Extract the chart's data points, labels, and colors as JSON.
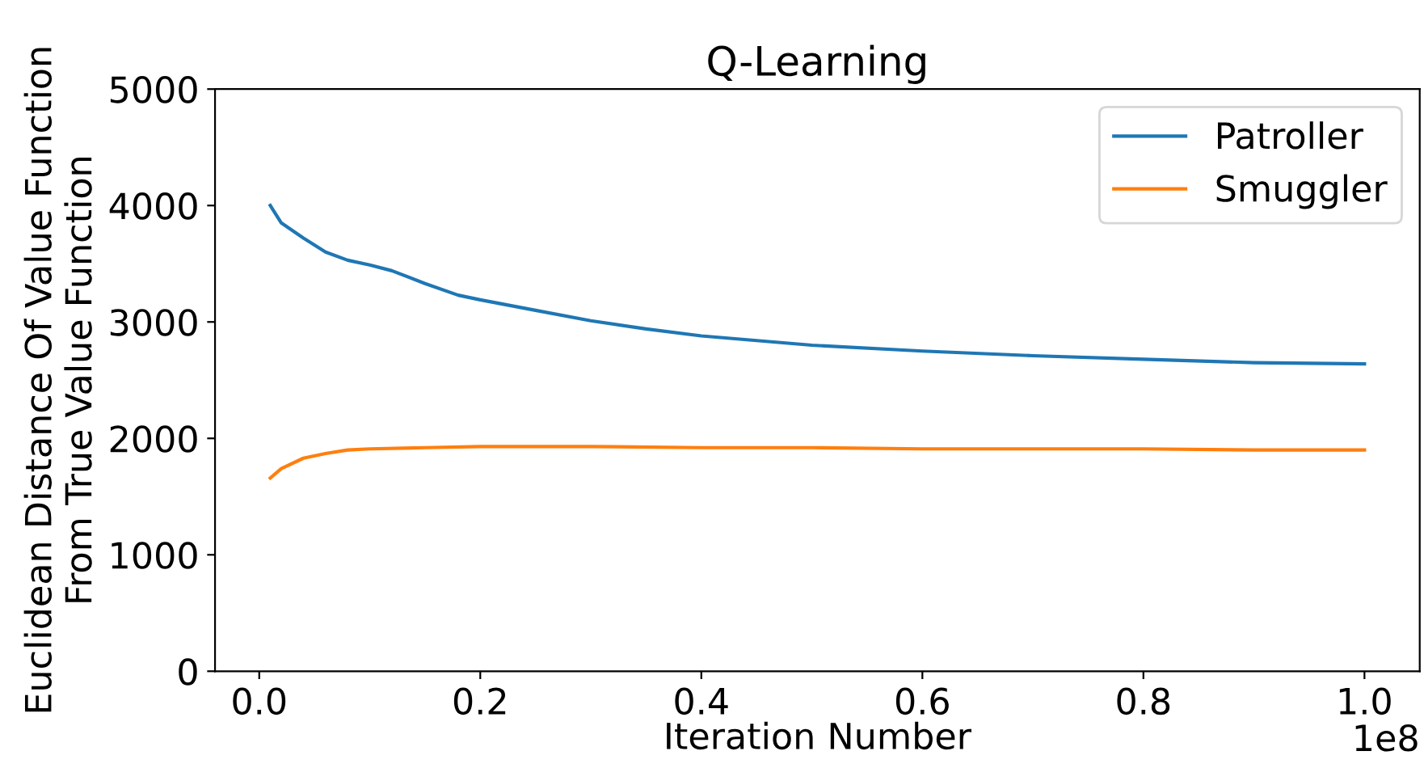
{
  "chart_data": {
    "type": "line",
    "title": "Q-Learning",
    "xlabel": "Iteration Number",
    "ylabel": "Euclidean Distance Of Value Function\nFrom True Value Function",
    "series": [
      {
        "name": "Patroller",
        "color": "#1f77b4",
        "x": [
          0.01,
          0.02,
          0.04,
          0.06,
          0.08,
          0.1,
          0.12,
          0.15,
          0.18,
          0.2,
          0.25,
          0.3,
          0.35,
          0.4,
          0.5,
          0.6,
          0.7,
          0.8,
          0.9,
          1.0
        ],
        "values": [
          4000,
          3850,
          3720,
          3600,
          3530,
          3490,
          3440,
          3330,
          3230,
          3190,
          3100,
          3010,
          2940,
          2880,
          2800,
          2750,
          2710,
          2680,
          2650,
          2640
        ]
      },
      {
        "name": "Smuggler",
        "color": "#ff7f0e",
        "x": [
          0.01,
          0.02,
          0.04,
          0.06,
          0.08,
          0.1,
          0.15,
          0.2,
          0.25,
          0.3,
          0.4,
          0.5,
          0.6,
          0.7,
          0.8,
          0.9,
          1.0
        ],
        "values": [
          1660,
          1740,
          1830,
          1870,
          1900,
          1910,
          1920,
          1930,
          1930,
          1930,
          1920,
          1920,
          1910,
          1910,
          1910,
          1900,
          1900
        ]
      }
    ],
    "xlim": [
      -0.04,
      1.05
    ],
    "xticks": [
      {
        "value": 0,
        "label": "0.0"
      },
      {
        "value": 0.2,
        "label": "0.2"
      },
      {
        "value": 0.4,
        "label": "0.4"
      },
      {
        "value": 0.6,
        "label": "0.6"
      },
      {
        "value": 0.8,
        "label": "0.8"
      },
      {
        "value": 1.0,
        "label": "1.0"
      }
    ],
    "ylim": [
      0,
      5000
    ],
    "yticks": [
      0,
      1000,
      2000,
      3000,
      4000,
      5000
    ],
    "annotations": [
      "1e8"
    ],
    "legend": "top right",
    "grid": false,
    "marker": "none",
    "line_style": "solid"
  }
}
